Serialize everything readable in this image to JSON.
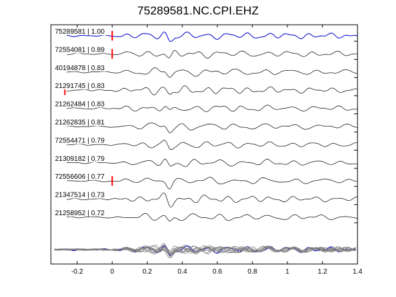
{
  "chart_data": {
    "type": "line",
    "title": "75289581.NC.CPI.EHZ",
    "xlabel": "",
    "ylabel": "",
    "xlim": [
      -0.35,
      1.4
    ],
    "xticks": [
      -0.2,
      0,
      0.2,
      0.4,
      0.6,
      0.8,
      1,
      1.2,
      1.4
    ],
    "xtick_labels": [
      "-0.2",
      "0",
      "0.2",
      "0.4",
      "0.6",
      "0.8",
      "1",
      "1.2",
      "1.4"
    ],
    "grid": false,
    "colors": {
      "reference": "#0000cc",
      "trace": "#000000",
      "overlay": "#808080",
      "pick": "#ff0000"
    },
    "traces": [
      {
        "label": "75289581 | 1.00",
        "reference": true,
        "pick": 0.0
      },
      {
        "label": "72554081 | 0.89",
        "reference": false,
        "pick": 0.0
      },
      {
        "label": "40194878 | 0.83",
        "reference": false,
        "pick": null
      },
      {
        "label": "21291745 | 0.83",
        "reference": false,
        "pick": -0.27
      },
      {
        "label": "21262484 | 0.83",
        "reference": false,
        "pick": null
      },
      {
        "label": "21262835 | 0.81",
        "reference": false,
        "pick": null
      },
      {
        "label": "72554471 | 0.79",
        "reference": false,
        "pick": null
      },
      {
        "label": "21309182 | 0.79",
        "reference": false,
        "pick": null
      },
      {
        "label": "72556606 | 0.77",
        "reference": false,
        "pick": 0.0
      },
      {
        "label": "21347514 | 0.73",
        "reference": false,
        "pick": null
      },
      {
        "label": "21258952 | 0.72",
        "reference": false,
        "pick": null
      }
    ]
  }
}
